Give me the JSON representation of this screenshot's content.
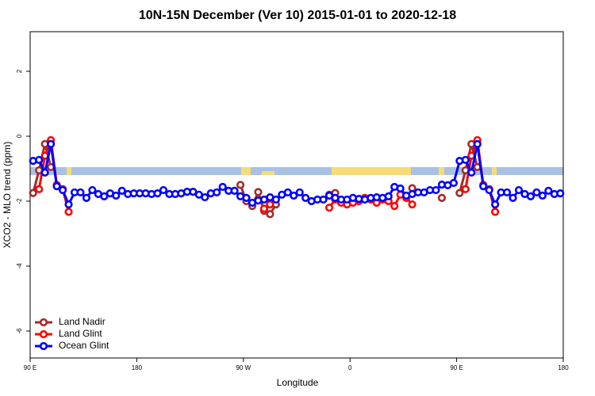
{
  "chart_data": {
    "type": "line",
    "title": "10N-15N December (Ver 10)   2015-01-01 to 2020-12-18",
    "x_label": "Longitude",
    "y_label": "XCO2 - MLO trend (ppm)",
    "x": [
      92.5,
      97.5,
      102.5,
      107.5,
      112.5,
      117.5,
      122.5,
      127.5,
      132.5,
      137.5,
      142.5,
      147.5,
      152.5,
      157.5,
      162.5,
      167.5,
      172.5,
      177.5,
      182.5,
      187.5,
      192.5,
      197.5,
      202.5,
      207.5,
      212.5,
      217.5,
      222.5,
      227.5,
      232.5,
      237.5,
      242.5,
      247.5,
      252.5,
      257.5,
      262.5,
      267.5,
      272.5,
      277.5,
      282.5,
      287.5,
      292.5,
      297.5,
      302.5,
      307.5,
      312.5,
      317.5,
      322.5,
      327.5,
      332.5,
      337.5,
      342.5,
      347.5,
      352.5,
      357.5,
      362.5,
      367.5,
      372.5,
      377.5,
      382.5,
      387.5,
      392.5,
      397.5,
      402.5,
      407.5,
      412.5,
      417.5,
      422.5,
      427.5,
      432.5,
      437.5,
      442.5,
      447.5,
      452.5,
      457.5,
      462.5,
      467.5,
      472.5,
      477.5,
      482.5,
      487.5,
      492.5,
      497.5,
      502.5,
      507.5,
      512.5,
      517.5,
      522.5,
      527.5,
      532.5,
      537.5
    ],
    "series": [
      {
        "name": "Land Nadir",
        "color": "#a52a2a",
        "values": [
          -1.75,
          -1.05,
          -0.24,
          -0.95,
          null,
          null,
          null,
          null,
          null,
          null,
          null,
          null,
          null,
          null,
          null,
          null,
          null,
          null,
          null,
          null,
          null,
          null,
          null,
          null,
          null,
          null,
          null,
          null,
          null,
          null,
          null,
          null,
          null,
          null,
          null,
          -1.5,
          -2.0,
          -2.15,
          -1.72,
          -2.3,
          -2.4,
          -2.1,
          null,
          null,
          null,
          null,
          null,
          null,
          null,
          null,
          -1.8,
          -1.75,
          null,
          null,
          null,
          null,
          null,
          null,
          null,
          null,
          null,
          null,
          null,
          null,
          -1.6,
          null,
          null,
          null,
          null,
          -1.9,
          null,
          null,
          -1.75,
          -1.05,
          -0.24,
          -0.95,
          null,
          null,
          null,
          null,
          null,
          null,
          null,
          null,
          null,
          null,
          null,
          null,
          null,
          null
        ]
      },
      {
        "name": "Land Glint",
        "color": "#ff0000",
        "values": [
          null,
          -1.63,
          -0.6,
          -0.12,
          -1.5,
          -1.63,
          -2.33,
          null,
          null,
          null,
          null,
          null,
          null,
          null,
          null,
          null,
          null,
          null,
          null,
          null,
          null,
          null,
          null,
          null,
          null,
          null,
          null,
          null,
          null,
          null,
          null,
          null,
          null,
          null,
          null,
          null,
          null,
          null,
          null,
          -2.23,
          -2.1,
          null,
          null,
          null,
          null,
          null,
          null,
          null,
          null,
          null,
          -2.2,
          -1.95,
          -2.05,
          -2.1,
          -2.05,
          -2.0,
          -1.9,
          -1.95,
          -2.05,
          -1.95,
          -2.0,
          -2.15,
          -1.8,
          -1.9,
          -2.1,
          null,
          null,
          null,
          null,
          null,
          null,
          null,
          null,
          -1.63,
          -0.6,
          -0.12,
          -1.5,
          -1.63,
          -2.33,
          null,
          null,
          null,
          null,
          null,
          null,
          null,
          null,
          null,
          null,
          null
        ]
      },
      {
        "name": "Ocean Glint",
        "color": "#0000ff",
        "values": [
          -0.76,
          -0.73,
          -1.12,
          -0.24,
          -1.54,
          -1.66,
          -2.1,
          -1.73,
          -1.73,
          -1.9,
          -1.66,
          -1.78,
          -1.85,
          -1.76,
          -1.83,
          -1.68,
          -1.78,
          -1.76,
          -1.76,
          -1.76,
          -1.78,
          -1.76,
          -1.66,
          -1.78,
          -1.78,
          -1.76,
          -1.71,
          -1.71,
          -1.8,
          -1.88,
          -1.76,
          -1.73,
          -1.56,
          -1.68,
          -1.68,
          -1.85,
          -1.9,
          -2.05,
          -1.98,
          -1.95,
          -1.88,
          -1.95,
          -1.8,
          -1.73,
          -1.83,
          -1.73,
          -1.9,
          -2.0,
          -1.95,
          -1.95,
          -1.83,
          -1.9,
          -1.95,
          -1.95,
          -1.9,
          -1.93,
          -1.95,
          -1.9,
          -1.88,
          -1.9,
          -1.85,
          -1.56,
          -1.61,
          -1.83,
          -1.78,
          -1.73,
          -1.73,
          -1.66,
          -1.66,
          -1.49,
          -1.51,
          -1.44,
          -0.76,
          -0.73,
          -1.12,
          -0.24,
          -1.54,
          -1.66,
          -2.1,
          -1.73,
          -1.73,
          -1.9,
          -1.66,
          -1.78,
          -1.85,
          -1.73,
          -1.83,
          -1.68,
          -1.78,
          -1.76
        ]
      }
    ],
    "xlim": [
      90,
      540
    ],
    "xticks": [
      {
        "value": 90,
        "label": "90 E"
      },
      180,
      {
        "value": 270,
        "label": "90 W"
      },
      {
        "value": 360,
        "label": "0"
      },
      {
        "value": 450,
        "label": "90 E"
      },
      {
        "value": 540,
        "label": "180"
      }
    ],
    "ylim": [
      -6.83,
      3.22
    ],
    "yticks": [
      -6,
      -4,
      -2,
      0,
      2
    ],
    "legend": "bottom-left"
  }
}
